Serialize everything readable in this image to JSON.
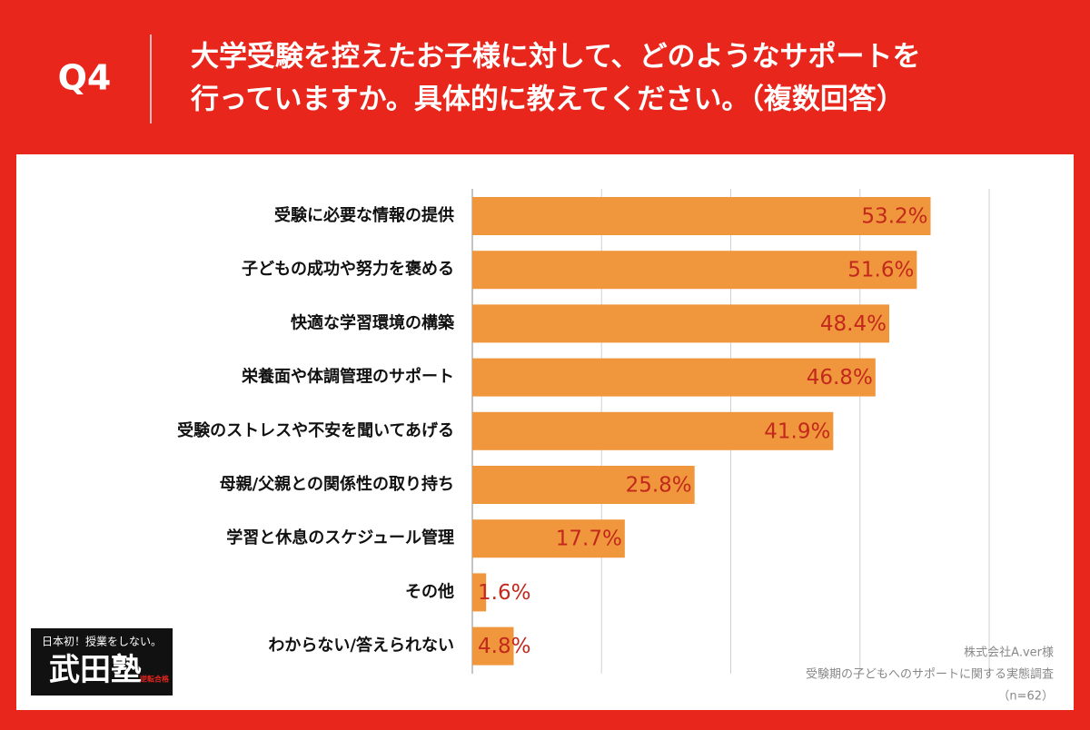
{
  "header": {
    "question": "Q4",
    "title_lines": [
      "大学受験を控えたお子様に対して、どのようなサポートを",
      "行っていますか。具体的に教えてください。（複数回答）"
    ]
  },
  "chart_data": {
    "type": "hbar",
    "categories": [
      "受験に必要な情報の提供",
      "子どもの成功や努力を褒める",
      "快適な学習環境の構築",
      "栄養面や体調管理のサポート",
      "受験のストレスや不安を聞いてあげる",
      "母親/父親との関係性の取り持ち",
      "学習と休息のスケジュール管理",
      "その他",
      "わからない/答えられない"
    ],
    "values": [
      53.2,
      51.6,
      48.4,
      46.8,
      41.9,
      25.8,
      17.7,
      1.6,
      4.8
    ],
    "value_labels": [
      "53.2%",
      "51.6%",
      "48.4%",
      "46.8%",
      "41.9%",
      "25.8%",
      "17.7%",
      "1.6%",
      "4.8%"
    ],
    "color": "#f0973d",
    "label_color": "#c2281c",
    "xlim": [
      0,
      60
    ],
    "xticks": [
      0,
      15,
      30,
      45,
      60
    ],
    "grid": true,
    "notes": [
      "株式会社A.ver様",
      "受験期の子どもへのサポートに関する実態調査",
      "（n=62）"
    ]
  },
  "logo": {
    "tagline": "日本初！授業をしない。",
    "name": "武田塾",
    "badge": "逆転合格"
  }
}
